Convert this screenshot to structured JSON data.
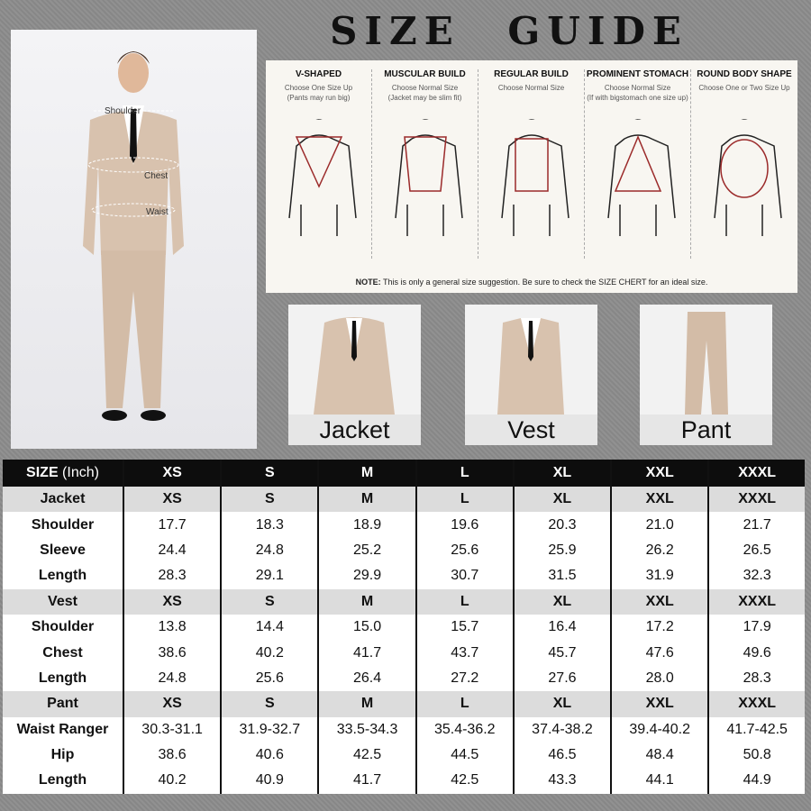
{
  "title": "SIZE GUIDE",
  "photo_labels": {
    "shoulder": "Shoulder",
    "chest": "Chest",
    "waist": "Waist"
  },
  "body_types": [
    {
      "name": "V-SHAPED",
      "tip": "Choose One Size Up",
      "tip2": "(Pants may run big)",
      "shape": "inverted-triangle"
    },
    {
      "name": "MUSCULAR BUILD",
      "tip": "Choose Normal Size",
      "tip2": "(Jacket may be slim fit)",
      "shape": "trapezoid"
    },
    {
      "name": "REGULAR BUILD",
      "tip": "Choose Normal Size",
      "tip2": "",
      "shape": "rectangle"
    },
    {
      "name": "PROMINENT STOMACH",
      "tip": "Choose Normal Size",
      "tip2": "(If with bigstomach one size up)",
      "shape": "triangle"
    },
    {
      "name": "ROUND BODY SHAPE",
      "tip": "Choose One or Two Size Up",
      "tip2": "",
      "shape": "oval"
    }
  ],
  "note_label": "NOTE:",
  "note": " This is only a general size suggestion. Be sure to check the SIZE CHERT for an ideal size.",
  "products": [
    "Jacket",
    "Vest",
    "Pant"
  ],
  "colors": {
    "suit": "#d8c2ae",
    "outline_accent": "#9b2a2a",
    "header": "#0d0d0d",
    "section": "#dcdcdc"
  },
  "table": {
    "header_label": "SIZE",
    "header_unit": " (Inch)",
    "sizes": [
      "XS",
      "S",
      "M",
      "L",
      "XL",
      "XXL",
      "XXXL"
    ],
    "rows": [
      {
        "type": "sec",
        "label": "Jacket",
        "values": [
          "XS",
          "S",
          "M",
          "L",
          "XL",
          "XXL",
          "XXXL"
        ]
      },
      {
        "label": "Shoulder",
        "values": [
          "17.7",
          "18.3",
          "18.9",
          "19.6",
          "20.3",
          "21.0",
          "21.7"
        ]
      },
      {
        "label": "Sleeve",
        "values": [
          "24.4",
          "24.8",
          "25.2",
          "25.6",
          "25.9",
          "26.2",
          "26.5"
        ]
      },
      {
        "label": "Length",
        "values": [
          "28.3",
          "29.1",
          "29.9",
          "30.7",
          "31.5",
          "31.9",
          "32.3"
        ]
      },
      {
        "type": "sec",
        "label": "Vest",
        "values": [
          "XS",
          "S",
          "M",
          "L",
          "XL",
          "XXL",
          "XXXL"
        ]
      },
      {
        "label": "Shoulder",
        "values": [
          "13.8",
          "14.4",
          "15.0",
          "15.7",
          "16.4",
          "17.2",
          "17.9"
        ]
      },
      {
        "label": "Chest",
        "values": [
          "38.6",
          "40.2",
          "41.7",
          "43.7",
          "45.7",
          "47.6",
          "49.6"
        ]
      },
      {
        "label": "Length",
        "values": [
          "24.8",
          "25.6",
          "26.4",
          "27.2",
          "27.6",
          "28.0",
          "28.3"
        ]
      },
      {
        "type": "sec",
        "label": "Pant",
        "values": [
          "XS",
          "S",
          "M",
          "L",
          "XL",
          "XXL",
          "XXXL"
        ]
      },
      {
        "label": "Waist Ranger",
        "values": [
          "30.3-31.1",
          "31.9-32.7",
          "33.5-34.3",
          "35.4-36.2",
          "37.4-38.2",
          "39.4-40.2",
          "41.7-42.5"
        ]
      },
      {
        "label": "Hip",
        "values": [
          "38.6",
          "40.6",
          "42.5",
          "44.5",
          "46.5",
          "48.4",
          "50.8"
        ]
      },
      {
        "label": "Length",
        "values": [
          "40.2",
          "40.9",
          "41.7",
          "42.5",
          "43.3",
          "44.1",
          "44.9"
        ]
      }
    ]
  }
}
